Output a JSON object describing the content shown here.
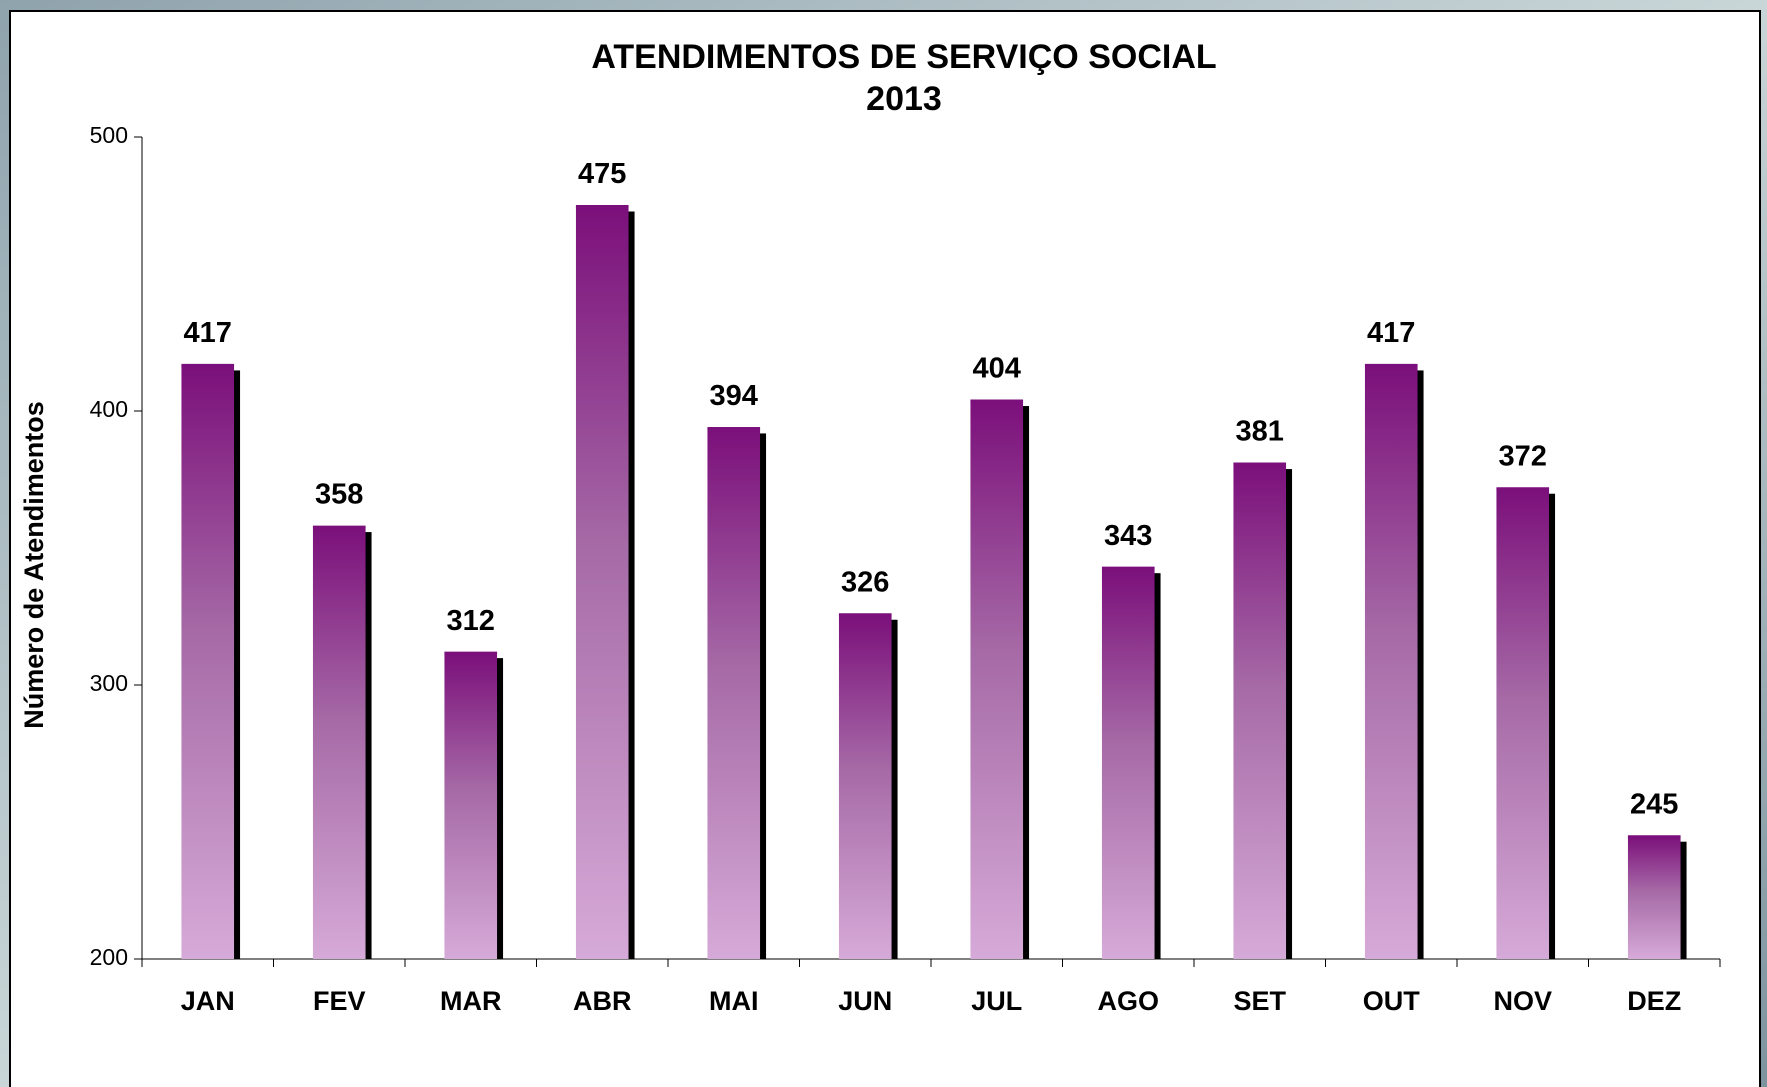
{
  "chart_data": {
    "type": "bar",
    "title": "ATENDIMENTOS DE SERVIÇO SOCIAL",
    "subtitle": "2013",
    "y_label": "Número de Atendimentos",
    "categories": [
      "JAN",
      "FEV",
      "MAR",
      "ABR",
      "MAI",
      "JUN",
      "JUL",
      "AGO",
      "SET",
      "OUT",
      "NOV",
      "DEZ"
    ],
    "values": [
      417,
      358,
      312,
      475,
      394,
      326,
      404,
      343,
      381,
      417,
      372,
      245
    ],
    "color": "#7b0f7b",
    "ylim": [
      200,
      500
    ],
    "yticks": [
      200,
      300,
      400,
      500
    ],
    "grid": false
  }
}
